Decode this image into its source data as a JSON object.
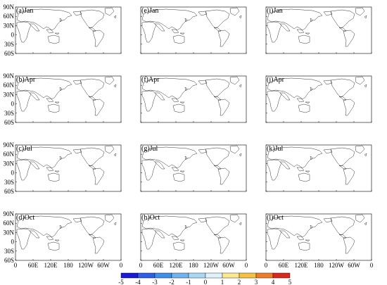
{
  "panels": [
    {
      "label": "(a)Jan",
      "row": 0,
      "col": 0,
      "scheme": "A"
    },
    {
      "label": "(e)Jan",
      "row": 0,
      "col": 1,
      "scheme": "A"
    },
    {
      "label": "(i)Jan",
      "row": 0,
      "col": 2,
      "scheme": "C"
    },
    {
      "label": "(b)Apr",
      "row": 1,
      "col": 0,
      "scheme": "A"
    },
    {
      "label": "(f)Apr",
      "row": 1,
      "col": 1,
      "scheme": "A"
    },
    {
      "label": "(j)Apr",
      "row": 1,
      "col": 2,
      "scheme": "D"
    },
    {
      "label": "(c)Jul",
      "row": 2,
      "col": 0,
      "scheme": "B"
    },
    {
      "label": "(g)Jul",
      "row": 2,
      "col": 1,
      "scheme": "B"
    },
    {
      "label": "(k)Jul",
      "row": 2,
      "col": 2,
      "scheme": "E"
    },
    {
      "label": "(d)Oct",
      "row": 3,
      "col": 0,
      "scheme": "A"
    },
    {
      "label": "(h)Oct",
      "row": 3,
      "col": 1,
      "scheme": "A"
    },
    {
      "label": "(l)Oct",
      "row": 3,
      "col": 2,
      "scheme": "F"
    }
  ],
  "lat_ticks": [
    "90N",
    "60N",
    "30N",
    "0",
    "30S",
    "60S"
  ],
  "lon_ticks": [
    "0",
    "60E",
    "120E",
    "180",
    "120W",
    "60W",
    "0"
  ],
  "colorbar": {
    "labels": [
      "-5",
      "-4",
      "-3",
      "-2",
      "-1",
      "0",
      "1",
      "2",
      "3",
      "4",
      "5"
    ],
    "colors": [
      "#1a1ad6",
      "#2e5fe6",
      "#3f8ee8",
      "#6fb3ef",
      "#a9d6f2",
      "#dff1fb",
      "#fbe98f",
      "#f6c141",
      "#ee7d2a",
      "#d9281e"
    ]
  },
  "colors": {
    "ocean": "#ffffff",
    "coastline": "#000000"
  }
}
